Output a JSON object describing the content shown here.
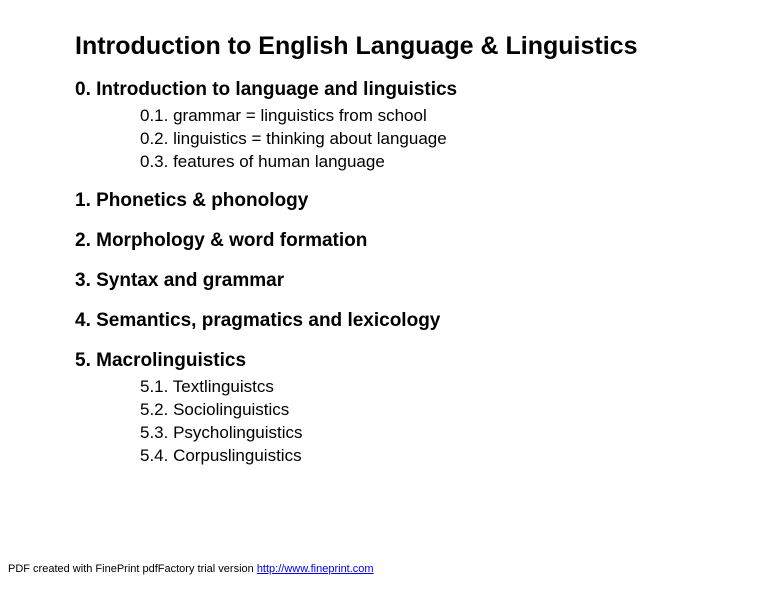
{
  "title": "Introduction to English Language & Linguistics",
  "sections": {
    "s0": {
      "heading": "0. Introduction to language and linguistics",
      "items": {
        "i0": "0.1. grammar = linguistics from school",
        "i1": "0.2. linguistics = thinking about language",
        "i2": "0.3. features of human language"
      }
    },
    "s1": {
      "heading": "1. Phonetics & phonology"
    },
    "s2": {
      "heading": "2. Morphology & word formation"
    },
    "s3": {
      "heading": "3. Syntax and grammar"
    },
    "s4": {
      "heading": "4. Semantics, pragmatics and lexicology"
    },
    "s5": {
      "heading": "5. Macrolinguistics",
      "items": {
        "i0": "5.1. Textlinguistcs",
        "i1": "5.2. Sociolinguistics",
        "i2": "5.3. Psycholinguistics",
        "i3": "5.4. Corpuslinguistics"
      }
    }
  },
  "footer": {
    "text": "PDF created with FinePrint pdfFactory trial version ",
    "link_text": "http://www.fineprint.com"
  },
  "style": {
    "background_color": "#ffffff",
    "text_color": "#000000",
    "link_color": "#0000ee",
    "title_fontsize": 25,
    "section_fontsize": 19,
    "subitem_fontsize": 17,
    "footer_fontsize": 11,
    "font_family": "Verdana, Geneva, sans-serif"
  }
}
